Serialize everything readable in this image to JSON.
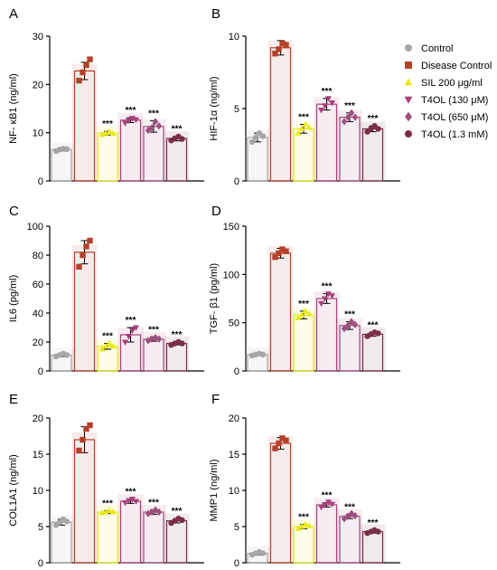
{
  "groups": [
    {
      "name": "Control",
      "color": "#a6a6a6",
      "marker": "circle"
    },
    {
      "name": "Disease Control",
      "color": "#b5412b",
      "marker": "square"
    },
    {
      "name": "SIL 200 μg/ml",
      "color": "#e8e81a",
      "marker": "triangle-up"
    },
    {
      "name": "T4OL (130 μM)",
      "color": "#a8407a",
      "marker": "triangle-down"
    },
    {
      "name": "T4OL (650 μM)",
      "color": "#9c4f7c",
      "marker": "diamond"
    },
    {
      "name": "T4OL (1.3 mM)",
      "color": "#7a2e45",
      "marker": "circle"
    }
  ],
  "chart_data": [
    {
      "panel": "A",
      "type": "bar",
      "ylabel": "NF- κB1 (ng/ml)",
      "ylim": [
        0,
        30
      ],
      "yticks": [
        0,
        10,
        20,
        30
      ],
      "values": [
        6.5,
        22.8,
        9.9,
        12.6,
        11.3,
        8.8
      ],
      "errors": [
        0.3,
        1.8,
        0.4,
        0.5,
        1.2,
        0.5
      ],
      "points": [
        [
          6.2,
          6.5,
          6.7,
          6.6
        ],
        [
          20.8,
          22.5,
          24.0,
          25.2
        ],
        [
          9.6,
          9.9,
          10.2,
          9.8
        ],
        [
          12.0,
          12.6,
          13.0,
          12.7
        ],
        [
          10.5,
          11.0,
          12.3,
          11.4
        ],
        [
          8.4,
          8.8,
          9.2,
          8.7
        ]
      ],
      "significance": [
        "",
        "",
        "***",
        "***",
        "***",
        "***"
      ]
    },
    {
      "panel": "B",
      "type": "bar",
      "ylabel": "HIF-1α (ng/ml)",
      "ylim": [
        0,
        10
      ],
      "yticks": [
        0,
        5,
        10
      ],
      "values": [
        3.0,
        9.2,
        3.6,
        5.3,
        4.4,
        3.6
      ],
      "errors": [
        0.3,
        0.5,
        0.3,
        0.4,
        0.3,
        0.2
      ],
      "points": [
        [
          2.7,
          3.0,
          3.3,
          3.1
        ],
        [
          8.8,
          9.1,
          9.5,
          9.4
        ],
        [
          3.3,
          3.6,
          3.9,
          3.7
        ],
        [
          4.9,
          5.2,
          5.7,
          5.4
        ],
        [
          4.1,
          4.4,
          4.7,
          4.4
        ],
        [
          3.4,
          3.6,
          3.8,
          3.6
        ]
      ],
      "significance": [
        "",
        "",
        "***",
        "***",
        "***",
        "***"
      ]
    },
    {
      "panel": "C",
      "type": "bar",
      "ylabel": "IL6 (pg/ml)",
      "ylim": [
        0,
        100
      ],
      "yticks": [
        0,
        20,
        40,
        60,
        80,
        100
      ],
      "values": [
        11,
        82,
        17,
        25,
        22,
        19
      ],
      "errors": [
        1,
        8,
        2,
        5,
        1.5,
        1
      ],
      "points": [
        [
          10,
          11,
          12,
          11
        ],
        [
          72,
          80,
          86,
          90
        ],
        [
          15,
          17,
          19,
          17
        ],
        [
          20,
          24,
          28,
          30
        ],
        [
          21,
          22,
          23,
          22
        ],
        [
          18,
          19,
          20,
          19
        ]
      ],
      "significance": [
        "",
        "",
        "***",
        "***",
        "***",
        "***"
      ]
    },
    {
      "panel": "D",
      "type": "bar",
      "ylabel": "TGF- β1 (pg/ml)",
      "ylim": [
        0,
        150
      ],
      "yticks": [
        0,
        50,
        100,
        150
      ],
      "values": [
        17,
        122,
        58,
        75,
        47,
        38
      ],
      "errors": [
        1,
        5,
        4,
        5,
        4,
        2
      ],
      "points": [
        [
          16,
          17,
          18,
          17
        ],
        [
          118,
          122,
          126,
          124
        ],
        [
          55,
          58,
          62,
          59
        ],
        [
          70,
          75,
          80,
          78
        ],
        [
          44,
          47,
          51,
          48
        ],
        [
          36,
          38,
          40,
          39
        ]
      ],
      "significance": [
        "",
        "",
        "***",
        "***",
        "***",
        "***"
      ]
    },
    {
      "panel": "E",
      "type": "bar",
      "ylabel": "COL1A1 (ng/ml)",
      "ylim": [
        0,
        20
      ],
      "yticks": [
        0,
        5,
        10,
        15,
        20
      ],
      "values": [
        5.6,
        17.0,
        7.0,
        8.5,
        7.0,
        5.8
      ],
      "errors": [
        0.4,
        1.8,
        0.2,
        0.3,
        0.3,
        0.3
      ],
      "points": [
        [
          5.2,
          5.6,
          6.0,
          5.7
        ],
        [
          15.5,
          17.0,
          18.5,
          19.0
        ],
        [
          6.9,
          7.0,
          7.2,
          7.0
        ],
        [
          8.3,
          8.6,
          8.8,
          8.5
        ],
        [
          6.8,
          7.0,
          7.3,
          7.0
        ],
        [
          5.5,
          5.8,
          6.1,
          5.9
        ]
      ],
      "significance": [
        "",
        "",
        "***",
        "***",
        "***",
        "***"
      ]
    },
    {
      "panel": "F",
      "type": "bar",
      "ylabel": "MMP1 (ng/ml)",
      "ylim": [
        0,
        20
      ],
      "yticks": [
        0,
        5,
        10,
        15,
        20
      ],
      "values": [
        1.3,
        16.5,
        5.0,
        8.0,
        6.4,
        4.3
      ],
      "errors": [
        0.2,
        0.8,
        0.3,
        0.3,
        0.3,
        0.2
      ],
      "points": [
        [
          1.1,
          1.3,
          1.5,
          1.3
        ],
        [
          15.8,
          16.5,
          17.2,
          16.9
        ],
        [
          4.7,
          5.0,
          5.3,
          5.1
        ],
        [
          7.7,
          8.0,
          8.4,
          8.1
        ],
        [
          6.1,
          6.4,
          6.8,
          6.5
        ],
        [
          4.1,
          4.3,
          4.5,
          4.3
        ]
      ],
      "significance": [
        "",
        "",
        "***",
        "***",
        "***",
        "***"
      ]
    }
  ]
}
